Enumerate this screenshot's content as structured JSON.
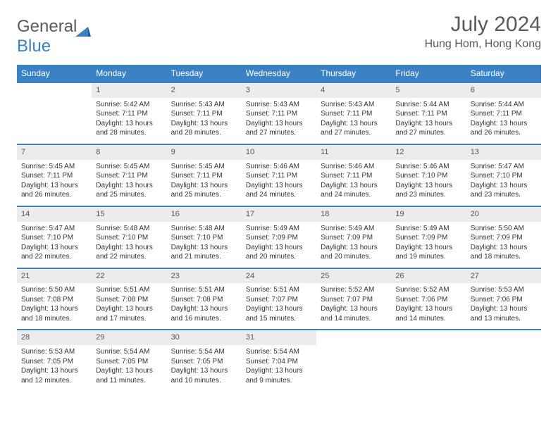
{
  "brand": {
    "part1": "General",
    "part2": "Blue"
  },
  "title": "July 2024",
  "location": "Hung Hom, Hong Kong",
  "colors": {
    "header_bg": "#3b82c4",
    "header_text": "#ffffff",
    "daynum_bg": "#ececec",
    "border": "#3b82c4",
    "text": "#333333",
    "title_text": "#5a5a5a"
  },
  "day_headers": [
    "Sunday",
    "Monday",
    "Tuesday",
    "Wednesday",
    "Thursday",
    "Friday",
    "Saturday"
  ],
  "weeks": [
    [
      null,
      {
        "n": "1",
        "sr": "Sunrise: 5:42 AM",
        "ss": "Sunset: 7:11 PM",
        "d1": "Daylight: 13 hours",
        "d2": "and 28 minutes."
      },
      {
        "n": "2",
        "sr": "Sunrise: 5:43 AM",
        "ss": "Sunset: 7:11 PM",
        "d1": "Daylight: 13 hours",
        "d2": "and 28 minutes."
      },
      {
        "n": "3",
        "sr": "Sunrise: 5:43 AM",
        "ss": "Sunset: 7:11 PM",
        "d1": "Daylight: 13 hours",
        "d2": "and 27 minutes."
      },
      {
        "n": "4",
        "sr": "Sunrise: 5:43 AM",
        "ss": "Sunset: 7:11 PM",
        "d1": "Daylight: 13 hours",
        "d2": "and 27 minutes."
      },
      {
        "n": "5",
        "sr": "Sunrise: 5:44 AM",
        "ss": "Sunset: 7:11 PM",
        "d1": "Daylight: 13 hours",
        "d2": "and 27 minutes."
      },
      {
        "n": "6",
        "sr": "Sunrise: 5:44 AM",
        "ss": "Sunset: 7:11 PM",
        "d1": "Daylight: 13 hours",
        "d2": "and 26 minutes."
      }
    ],
    [
      {
        "n": "7",
        "sr": "Sunrise: 5:45 AM",
        "ss": "Sunset: 7:11 PM",
        "d1": "Daylight: 13 hours",
        "d2": "and 26 minutes."
      },
      {
        "n": "8",
        "sr": "Sunrise: 5:45 AM",
        "ss": "Sunset: 7:11 PM",
        "d1": "Daylight: 13 hours",
        "d2": "and 25 minutes."
      },
      {
        "n": "9",
        "sr": "Sunrise: 5:45 AM",
        "ss": "Sunset: 7:11 PM",
        "d1": "Daylight: 13 hours",
        "d2": "and 25 minutes."
      },
      {
        "n": "10",
        "sr": "Sunrise: 5:46 AM",
        "ss": "Sunset: 7:11 PM",
        "d1": "Daylight: 13 hours",
        "d2": "and 24 minutes."
      },
      {
        "n": "11",
        "sr": "Sunrise: 5:46 AM",
        "ss": "Sunset: 7:11 PM",
        "d1": "Daylight: 13 hours",
        "d2": "and 24 minutes."
      },
      {
        "n": "12",
        "sr": "Sunrise: 5:46 AM",
        "ss": "Sunset: 7:10 PM",
        "d1": "Daylight: 13 hours",
        "d2": "and 23 minutes."
      },
      {
        "n": "13",
        "sr": "Sunrise: 5:47 AM",
        "ss": "Sunset: 7:10 PM",
        "d1": "Daylight: 13 hours",
        "d2": "and 23 minutes."
      }
    ],
    [
      {
        "n": "14",
        "sr": "Sunrise: 5:47 AM",
        "ss": "Sunset: 7:10 PM",
        "d1": "Daylight: 13 hours",
        "d2": "and 22 minutes."
      },
      {
        "n": "15",
        "sr": "Sunrise: 5:48 AM",
        "ss": "Sunset: 7:10 PM",
        "d1": "Daylight: 13 hours",
        "d2": "and 22 minutes."
      },
      {
        "n": "16",
        "sr": "Sunrise: 5:48 AM",
        "ss": "Sunset: 7:10 PM",
        "d1": "Daylight: 13 hours",
        "d2": "and 21 minutes."
      },
      {
        "n": "17",
        "sr": "Sunrise: 5:49 AM",
        "ss": "Sunset: 7:09 PM",
        "d1": "Daylight: 13 hours",
        "d2": "and 20 minutes."
      },
      {
        "n": "18",
        "sr": "Sunrise: 5:49 AM",
        "ss": "Sunset: 7:09 PM",
        "d1": "Daylight: 13 hours",
        "d2": "and 20 minutes."
      },
      {
        "n": "19",
        "sr": "Sunrise: 5:49 AM",
        "ss": "Sunset: 7:09 PM",
        "d1": "Daylight: 13 hours",
        "d2": "and 19 minutes."
      },
      {
        "n": "20",
        "sr": "Sunrise: 5:50 AM",
        "ss": "Sunset: 7:09 PM",
        "d1": "Daylight: 13 hours",
        "d2": "and 18 minutes."
      }
    ],
    [
      {
        "n": "21",
        "sr": "Sunrise: 5:50 AM",
        "ss": "Sunset: 7:08 PM",
        "d1": "Daylight: 13 hours",
        "d2": "and 18 minutes."
      },
      {
        "n": "22",
        "sr": "Sunrise: 5:51 AM",
        "ss": "Sunset: 7:08 PM",
        "d1": "Daylight: 13 hours",
        "d2": "and 17 minutes."
      },
      {
        "n": "23",
        "sr": "Sunrise: 5:51 AM",
        "ss": "Sunset: 7:08 PM",
        "d1": "Daylight: 13 hours",
        "d2": "and 16 minutes."
      },
      {
        "n": "24",
        "sr": "Sunrise: 5:51 AM",
        "ss": "Sunset: 7:07 PM",
        "d1": "Daylight: 13 hours",
        "d2": "and 15 minutes."
      },
      {
        "n": "25",
        "sr": "Sunrise: 5:52 AM",
        "ss": "Sunset: 7:07 PM",
        "d1": "Daylight: 13 hours",
        "d2": "and 14 minutes."
      },
      {
        "n": "26",
        "sr": "Sunrise: 5:52 AM",
        "ss": "Sunset: 7:06 PM",
        "d1": "Daylight: 13 hours",
        "d2": "and 14 minutes."
      },
      {
        "n": "27",
        "sr": "Sunrise: 5:53 AM",
        "ss": "Sunset: 7:06 PM",
        "d1": "Daylight: 13 hours",
        "d2": "and 13 minutes."
      }
    ],
    [
      {
        "n": "28",
        "sr": "Sunrise: 5:53 AM",
        "ss": "Sunset: 7:05 PM",
        "d1": "Daylight: 13 hours",
        "d2": "and 12 minutes."
      },
      {
        "n": "29",
        "sr": "Sunrise: 5:54 AM",
        "ss": "Sunset: 7:05 PM",
        "d1": "Daylight: 13 hours",
        "d2": "and 11 minutes."
      },
      {
        "n": "30",
        "sr": "Sunrise: 5:54 AM",
        "ss": "Sunset: 7:05 PM",
        "d1": "Daylight: 13 hours",
        "d2": "and 10 minutes."
      },
      {
        "n": "31",
        "sr": "Sunrise: 5:54 AM",
        "ss": "Sunset: 7:04 PM",
        "d1": "Daylight: 13 hours",
        "d2": "and 9 minutes."
      },
      null,
      null,
      null
    ]
  ]
}
